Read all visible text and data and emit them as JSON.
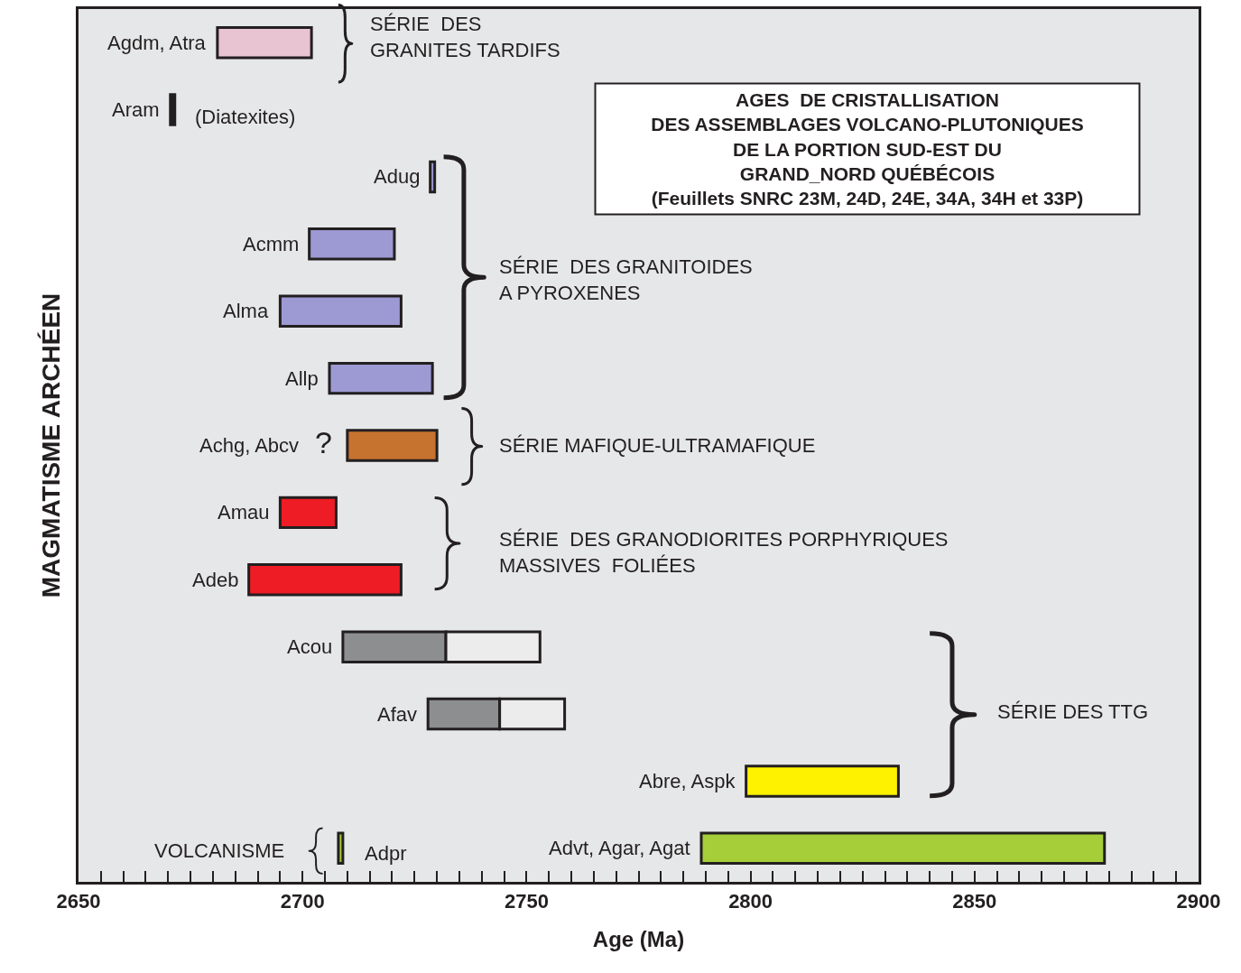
{
  "chart_data": {
    "type": "bar",
    "orientation": "horizontal",
    "title": "AGES  DE CRISTALLISATION\nDES ASSEMBLAGES VOLCANO-PLUTONIQUES\nDE LA PORTION SUD-EST DU\nGRAND_NORD QUÉBÉCOIS\n(Feuillets SNRC 23M, 24D, 24E, 34A, 34H et 33P)",
    "xlabel": "Age (Ma)",
    "ylabel": "MAGMATISME ARCHÉEN",
    "categories": [
      "Agdm, Atra",
      "Aram",
      "Adug",
      "Acmm",
      "Alma",
      "Allp",
      "Achg, Abcv",
      "Amau",
      "Adeb",
      "Acou",
      "Afav",
      "Abre, Aspk",
      "Advt, Agar, Agat"
    ],
    "series": [
      {
        "base": [
          2681,
          2670.5,
          2728.5,
          2701.5,
          2695,
          2706,
          2710,
          2695,
          2688,
          2709,
          2728,
          2799,
          2789
        ],
        "values": [
          21,
          1,
          1,
          19,
          27,
          23,
          20,
          12.5,
          34,
          23,
          16,
          34,
          90
        ],
        "colors": [
          "#e8c3d2",
          "#231f20",
          "#9d99d3",
          "#9d99d3",
          "#9d99d3",
          "#9d99d3",
          "#c6732f",
          "#ee1c24",
          "#ee1c24",
          "#8c8e90",
          "#8c8e90",
          "#fff200",
          "#a6ce39"
        ]
      },
      {
        "base": [
          null,
          null,
          null,
          null,
          null,
          null,
          null,
          null,
          null,
          2732,
          2744,
          null,
          2708
        ],
        "values": [
          null,
          null,
          null,
          null,
          null,
          null,
          null,
          null,
          null,
          21,
          14.5,
          null,
          1
        ],
        "colors": [
          "#ececec",
          "#ececec",
          "#ececec",
          "#ececec",
          "#ececec",
          "#ececec",
          "#ececec",
          "#ececec",
          "#ececec",
          "#ececec",
          "#ececec",
          "#ececec",
          "#a6ce39"
        ]
      }
    ],
    "annotations": [
      "SÉRIE  DES\nGRANITES TARDIFS",
      "(Diatexites)",
      "SÉRIE  DES GRANITOIDES\nA PYROXENES",
      "SÉRIE MAFIQUE-ULTRAMAFIQUE",
      "SÉRIE  DES GRANODIORITES PORPHYRIQUES\nMASSIVES  FOLIÉES",
      "SÉRIE DES TTG",
      "VOLCANISME",
      "Adpr",
      "?"
    ],
    "xlim": [
      2650,
      2900
    ],
    "xticks": [
      2650,
      {
        "value": 2655,
        "label": null
      },
      {
        "value": 2660,
        "label": null
      },
      {
        "value": 2665,
        "label": null
      },
      {
        "value": 2670,
        "label": null
      },
      {
        "value": 2675,
        "label": null
      },
      {
        "value": 2680,
        "label": null
      },
      {
        "value": 2685,
        "label": null
      },
      {
        "value": 2690,
        "label": null
      },
      {
        "value": 2695,
        "label": null
      },
      2700,
      {
        "value": 2705,
        "label": null
      },
      {
        "value": 2710,
        "label": null
      },
      {
        "value": 2715,
        "label": null
      },
      {
        "value": 2720,
        "label": null
      },
      {
        "value": 2725,
        "label": null
      },
      {
        "value": 2730,
        "label": null
      },
      {
        "value": 2735,
        "label": null
      },
      {
        "value": 2740,
        "label": null
      },
      {
        "value": 2745,
        "label": null
      },
      2750,
      {
        "value": 2755,
        "label": null
      },
      {
        "value": 2760,
        "label": null
      },
      {
        "value": 2765,
        "label": null
      },
      {
        "value": 2770,
        "label": null
      },
      {
        "value": 2775,
        "label": null
      },
      {
        "value": 2780,
        "label": null
      },
      {
        "value": 2785,
        "label": null
      },
      {
        "value": 2790,
        "label": null
      },
      {
        "value": 2795,
        "label": null
      },
      2800,
      {
        "value": 2805,
        "label": null
      },
      {
        "value": 2810,
        "label": null
      },
      {
        "value": 2815,
        "label": null
      },
      {
        "value": 2820,
        "label": null
      },
      {
        "value": 2825,
        "label": null
      },
      {
        "value": 2830,
        "label": null
      },
      {
        "value": 2835,
        "label": null
      },
      {
        "value": 2840,
        "label": null
      },
      {
        "value": 2845,
        "label": null
      },
      2850,
      {
        "value": 2855,
        "label": null
      },
      {
        "value": 2860,
        "label": null
      },
      {
        "value": 2865,
        "label": null
      },
      {
        "value": 2870,
        "label": null
      },
      {
        "value": 2875,
        "label": null
      },
      {
        "value": 2880,
        "label": null
      },
      {
        "value": 2885,
        "label": null
      },
      {
        "value": 2890,
        "label": null
      },
      {
        "value": 2895,
        "label": null
      },
      2900
    ],
    "tick_labels": "x"
  }
}
